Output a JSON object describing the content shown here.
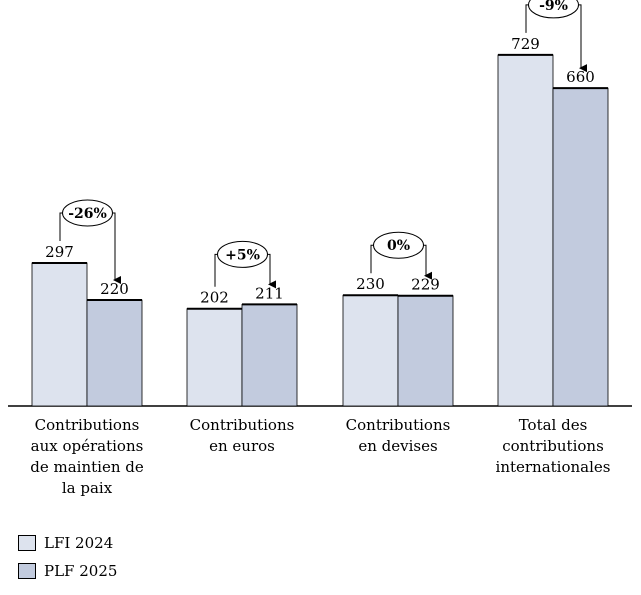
{
  "chart_data": {
    "type": "bar",
    "categories": [
      "Contributions aux opérations de maintien de la paix",
      "Contributions en euros",
      "Contributions en devises",
      "Total des contributions internationales"
    ],
    "category_lines": [
      [
        "Contributions",
        "aux opérations",
        "de maintien de",
        "la paix"
      ],
      [
        "Contributions",
        "en euros"
      ],
      [
        "Contributions",
        "en devises"
      ],
      [
        "Total des",
        "contributions",
        "internationales"
      ]
    ],
    "series": [
      {
        "name": "LFI 2024",
        "color": "#dde3ee",
        "values": [
          297,
          202,
          230,
          729
        ]
      },
      {
        "name": "PLF 2025",
        "color": "#c2cbde",
        "values": [
          220,
          211,
          229,
          660
        ]
      }
    ],
    "changes": [
      "-26%",
      "+5%",
      "0%",
      "-9%"
    ],
    "ylim": [
      0,
      760
    ],
    "title": "",
    "xlabel": "",
    "ylabel": ""
  }
}
